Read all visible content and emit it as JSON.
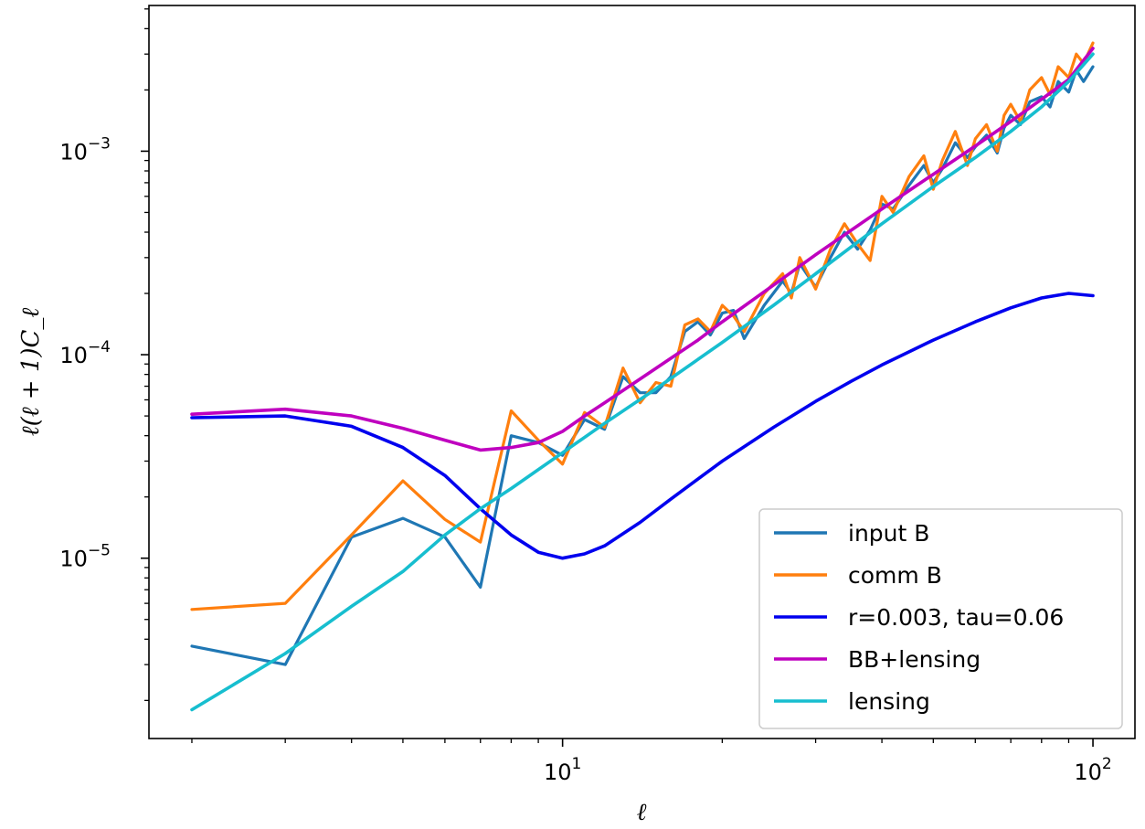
{
  "chart_data": {
    "type": "line",
    "xscale": "log",
    "yscale": "log",
    "xlabel": "ℓ",
    "ylabel": "ℓ(ℓ + 1)C_ℓ",
    "xlim": [
      1.66,
      120
    ],
    "ylim": [
      1.3e-06,
      0.0052
    ],
    "grid": false,
    "legend_position": "lower right",
    "x_ticks": [
      {
        "value": 10,
        "base": "10",
        "exp": "1"
      },
      {
        "value": 100,
        "base": "10",
        "exp": "2"
      }
    ],
    "y_ticks": [
      {
        "value": 1e-05,
        "base": "10",
        "exp": "−5"
      },
      {
        "value": 0.0001,
        "base": "10",
        "exp": "−4"
      },
      {
        "value": 0.001,
        "base": "10",
        "exp": "−3"
      }
    ],
    "series": [
      {
        "name": "input B",
        "color": "#1f77b4",
        "width": 3.2,
        "points": [
          [
            2,
            3.7e-06
          ],
          [
            3,
            3e-06
          ],
          [
            4,
            1.27e-05
          ],
          [
            5,
            1.57e-05
          ],
          [
            6,
            1.27e-05
          ],
          [
            7,
            7.2e-06
          ],
          [
            8,
            4e-05
          ],
          [
            9,
            3.7e-05
          ],
          [
            10,
            3.2e-05
          ],
          [
            11,
            4.8e-05
          ],
          [
            12,
            4.3e-05
          ],
          [
            13,
            7.8e-05
          ],
          [
            14,
            6.5e-05
          ],
          [
            15,
            6.5e-05
          ],
          [
            16,
            7.8e-05
          ],
          [
            17,
            0.00013
          ],
          [
            18,
            0.000145
          ],
          [
            19,
            0.000125
          ],
          [
            20,
            0.00016
          ],
          [
            21,
            0.000165
          ],
          [
            22,
            0.00012
          ],
          [
            24,
            0.000175
          ],
          [
            26,
            0.00023
          ],
          [
            27,
            0.0002
          ],
          [
            28,
            0.00028
          ],
          [
            30,
            0.000215
          ],
          [
            32,
            0.0003
          ],
          [
            34,
            0.0004
          ],
          [
            36,
            0.00033
          ],
          [
            38,
            0.00041
          ],
          [
            40,
            0.00055
          ],
          [
            42,
            0.00052
          ],
          [
            45,
            0.00068
          ],
          [
            48,
            0.00085
          ],
          [
            50,
            0.0007
          ],
          [
            52,
            0.00082
          ],
          [
            55,
            0.0011
          ],
          [
            58,
            0.00093
          ],
          [
            60,
            0.00105
          ],
          [
            63,
            0.0012
          ],
          [
            66,
            0.00098
          ],
          [
            68,
            0.0013
          ],
          [
            70,
            0.0015
          ],
          [
            73,
            0.00135
          ],
          [
            76,
            0.00175
          ],
          [
            80,
            0.00185
          ],
          [
            83,
            0.00165
          ],
          [
            86,
            0.0022
          ],
          [
            90,
            0.00195
          ],
          [
            93,
            0.0025
          ],
          [
            96,
            0.0022
          ],
          [
            100,
            0.0026
          ]
        ]
      },
      {
        "name": "comm B",
        "color": "#ff7f0e",
        "width": 3.2,
        "points": [
          [
            2,
            5.6e-06
          ],
          [
            3,
            6e-06
          ],
          [
            4,
            1.3e-05
          ],
          [
            5,
            2.4e-05
          ],
          [
            6,
            1.55e-05
          ],
          [
            7,
            1.2e-05
          ],
          [
            8,
            5.3e-05
          ],
          [
            9,
            3.8e-05
          ],
          [
            10,
            2.9e-05
          ],
          [
            11,
            5.2e-05
          ],
          [
            12,
            4.4e-05
          ],
          [
            13,
            8.6e-05
          ],
          [
            14,
            5.8e-05
          ],
          [
            15,
            7.3e-05
          ],
          [
            16,
            7e-05
          ],
          [
            17,
            0.00014
          ],
          [
            18,
            0.00015
          ],
          [
            19,
            0.00013
          ],
          [
            20,
            0.000175
          ],
          [
            21,
            0.000155
          ],
          [
            22,
            0.00013
          ],
          [
            24,
            0.0002
          ],
          [
            26,
            0.00025
          ],
          [
            27,
            0.00019
          ],
          [
            28,
            0.0003
          ],
          [
            30,
            0.00021
          ],
          [
            32,
            0.00033
          ],
          [
            34,
            0.00044
          ],
          [
            36,
            0.00035
          ],
          [
            38,
            0.00029
          ],
          [
            40,
            0.0006
          ],
          [
            42,
            0.0005
          ],
          [
            45,
            0.00075
          ],
          [
            48,
            0.00095
          ],
          [
            50,
            0.00065
          ],
          [
            52,
            0.0009
          ],
          [
            55,
            0.00125
          ],
          [
            58,
            0.00085
          ],
          [
            60,
            0.00115
          ],
          [
            63,
            0.00135
          ],
          [
            66,
            0.001
          ],
          [
            68,
            0.0015
          ],
          [
            70,
            0.0017
          ],
          [
            73,
            0.0014
          ],
          [
            76,
            0.002
          ],
          [
            80,
            0.0023
          ],
          [
            83,
            0.0019
          ],
          [
            86,
            0.0026
          ],
          [
            90,
            0.0023
          ],
          [
            93,
            0.003
          ],
          [
            96,
            0.0027
          ],
          [
            100,
            0.0034
          ]
        ]
      },
      {
        "name": "r=0.003, tau=0.06",
        "color": "#0000ee",
        "width": 3.6,
        "points": [
          [
            2,
            4.9e-05
          ],
          [
            3,
            5e-05
          ],
          [
            4,
            4.45e-05
          ],
          [
            5,
            3.5e-05
          ],
          [
            6,
            2.55e-05
          ],
          [
            7,
            1.75e-05
          ],
          [
            8,
            1.3e-05
          ],
          [
            9,
            1.07e-05
          ],
          [
            10,
            1e-05
          ],
          [
            11,
            1.05e-05
          ],
          [
            12,
            1.15e-05
          ],
          [
            14,
            1.5e-05
          ],
          [
            16,
            1.95e-05
          ],
          [
            18,
            2.45e-05
          ],
          [
            20,
            3e-05
          ],
          [
            25,
            4.4e-05
          ],
          [
            30,
            5.9e-05
          ],
          [
            35,
            7.4e-05
          ],
          [
            40,
            8.9e-05
          ],
          [
            50,
            0.000118
          ],
          [
            60,
            0.000145
          ],
          [
            70,
            0.00017
          ],
          [
            80,
            0.00019
          ],
          [
            90,
            0.0002
          ],
          [
            100,
            0.000195
          ]
        ]
      },
      {
        "name": "BB+lensing",
        "color": "#bf00bf",
        "width": 3.6,
        "points": [
          [
            2,
            5.1e-05
          ],
          [
            3,
            5.4e-05
          ],
          [
            4,
            5e-05
          ],
          [
            5,
            4.35e-05
          ],
          [
            6,
            3.8e-05
          ],
          [
            7,
            3.4e-05
          ],
          [
            8,
            3.5e-05
          ],
          [
            9,
            3.7e-05
          ],
          [
            10,
            4.2e-05
          ],
          [
            11,
            5e-05
          ],
          [
            12,
            5.8e-05
          ],
          [
            14,
            7.6e-05
          ],
          [
            16,
            9.6e-05
          ],
          [
            18,
            0.000118
          ],
          [
            20,
            0.000145
          ],
          [
            25,
            0.00022
          ],
          [
            30,
            0.00031
          ],
          [
            40,
            0.00052
          ],
          [
            50,
            0.00077
          ],
          [
            60,
            0.00106
          ],
          [
            70,
            0.0014
          ],
          [
            80,
            0.0018
          ],
          [
            90,
            0.00225
          ],
          [
            100,
            0.0032
          ]
        ]
      },
      {
        "name": "lensing",
        "color": "#17becf",
        "width": 3.6,
        "points": [
          [
            2,
            1.8e-06
          ],
          [
            3,
            3.4e-06
          ],
          [
            4,
            5.8e-06
          ],
          [
            5,
            8.6e-06
          ],
          [
            6,
            1.3e-05
          ],
          [
            7,
            1.75e-05
          ],
          [
            8,
            2.2e-05
          ],
          [
            10,
            3.3e-05
          ],
          [
            12,
            4.6e-05
          ],
          [
            15,
            6.8e-05
          ],
          [
            20,
            0.000115
          ],
          [
            25,
            0.000175
          ],
          [
            30,
            0.00025
          ],
          [
            40,
            0.00044
          ],
          [
            50,
            0.00067
          ],
          [
            60,
            0.00093
          ],
          [
            70,
            0.00125
          ],
          [
            80,
            0.00165
          ],
          [
            90,
            0.0022
          ],
          [
            100,
            0.003
          ]
        ]
      }
    ]
  }
}
